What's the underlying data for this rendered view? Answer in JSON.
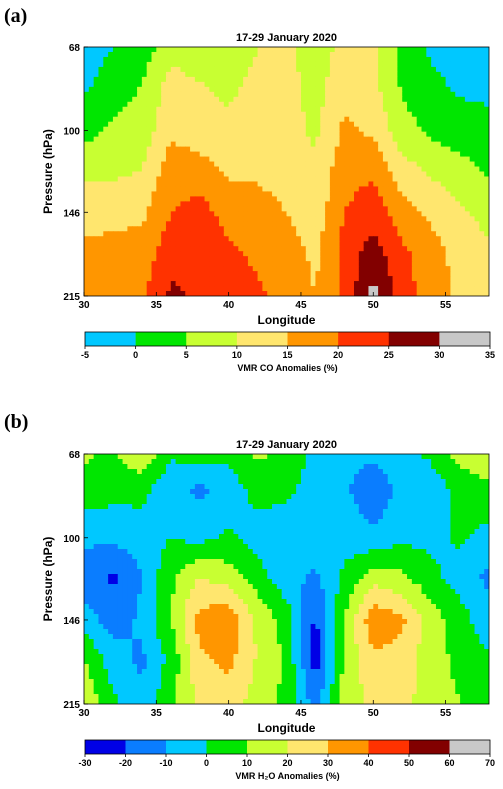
{
  "chart_data": [
    {
      "type": "heatmap",
      "panel_label": "(a)",
      "title": "17-29 January 2020",
      "xlabel": "Longitude",
      "ylabel": "Pressure (hPa)",
      "x_ticks": [
        "30",
        "35",
        "40",
        "45",
        "50",
        "55"
      ],
      "y_ticks": [
        "68",
        "100",
        "146",
        "215"
      ],
      "xlim": [
        30,
        58
      ],
      "ylim": [
        215,
        68
      ],
      "colorbar": {
        "label": "VMR CO Anomalies (%)",
        "ticks": [
          "-5",
          "0",
          "5",
          "10",
          "15",
          "20",
          "25",
          "30",
          "35"
        ],
        "colors": [
          "#00c8ff",
          "#00e600",
          "#c8ff32",
          "#ffe66e",
          "#ff9600",
          "#ff3200",
          "#820000",
          "#c8c8c8"
        ]
      },
      "x": [
        30,
        32,
        34,
        36,
        38,
        40,
        42,
        44,
        46,
        48,
        50,
        52,
        54,
        56,
        58
      ],
      "y": [
        68,
        80,
        100,
        120,
        146,
        175,
        215
      ],
      "z": [
        [
          -2,
          0,
          2,
          8,
          6,
          7,
          10,
          11,
          7,
          12,
          12,
          3,
          -1,
          -2,
          -2
        ],
        [
          -1,
          2,
          5,
          12,
          10,
          9,
          11,
          12,
          8,
          13,
          11,
          4,
          1,
          -1,
          -1
        ],
        [
          3,
          6,
          7,
          14,
          12,
          11,
          12,
          12,
          9,
          16,
          14,
          7,
          4,
          2,
          1
        ],
        [
          9,
          9,
          10,
          18,
          17,
          14,
          14,
          13,
          11,
          18,
          19,
          12,
          9,
          7,
          4
        ],
        [
          13,
          13,
          14,
          20,
          22,
          18,
          17,
          15,
          12,
          20,
          23,
          17,
          14,
          11,
          8
        ],
        [
          16,
          17,
          17,
          23,
          24,
          21,
          19,
          17,
          14,
          22,
          27,
          21,
          17,
          13,
          11
        ],
        [
          18,
          19,
          19,
          26,
          24,
          22,
          21,
          18,
          15,
          21,
          32,
          22,
          18,
          14,
          12
        ]
      ]
    },
    {
      "type": "heatmap",
      "panel_label": "(b)",
      "title": "17-29 January 2020",
      "xlabel": "Longitude",
      "ylabel": "Pressure (hPa)",
      "x_ticks": [
        "30",
        "35",
        "40",
        "45",
        "50",
        "55"
      ],
      "y_ticks": [
        "68",
        "100",
        "146",
        "215"
      ],
      "xlim": [
        30,
        58
      ],
      "ylim": [
        215,
        68
      ],
      "colorbar": {
        "label": "VMR H₂O Anomalies (%)",
        "ticks": [
          "-30",
          "-20",
          "-10",
          "0",
          "10",
          "20",
          "30",
          "40",
          "50",
          "60",
          "70"
        ],
        "colors": [
          "#0000e6",
          "#0a7dff",
          "#00c8ff",
          "#00e600",
          "#c8ff32",
          "#ffe66e",
          "#ff9600",
          "#ff3200",
          "#820000",
          "#c8c8c8"
        ]
      },
      "x": [
        30,
        32,
        34,
        36,
        38,
        40,
        42,
        44,
        46,
        48,
        50,
        52,
        54,
        56,
        58
      ],
      "y": [
        68,
        80,
        100,
        120,
        146,
        175,
        215
      ],
      "z": [
        [
          12,
          8,
          18,
          2,
          4,
          3,
          12,
          6,
          -2,
          -5,
          -8,
          -4,
          2,
          15,
          16
        ],
        [
          6,
          4,
          3,
          -8,
          -12,
          -6,
          4,
          3,
          -5,
          -8,
          -18,
          -6,
          -6,
          3,
          8
        ],
        [
          -8,
          -8,
          -5,
          0,
          -3,
          2,
          -5,
          -8,
          -3,
          -4,
          -8,
          -2,
          -3,
          2,
          -4
        ],
        [
          -15,
          -22,
          -10,
          8,
          20,
          15,
          5,
          -7,
          -12,
          2,
          16,
          12,
          3,
          -5,
          -12
        ],
        [
          -5,
          -15,
          -8,
          10,
          34,
          38,
          18,
          6,
          -22,
          10,
          38,
          32,
          15,
          5,
          -8
        ],
        [
          10,
          -5,
          -12,
          3,
          28,
          33,
          19,
          8,
          -25,
          12,
          28,
          26,
          13,
          8,
          2
        ],
        [
          18,
          2,
          -8,
          8,
          22,
          24,
          16,
          7,
          -15,
          15,
          22,
          24,
          14,
          10,
          8
        ]
      ]
    }
  ]
}
